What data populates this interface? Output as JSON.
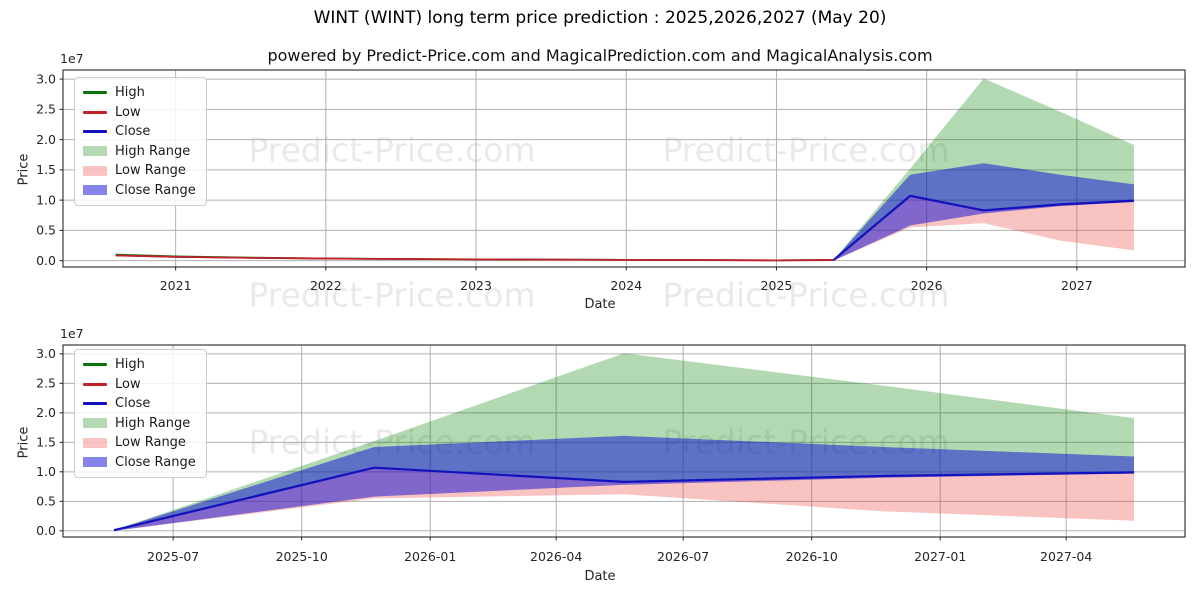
{
  "page": {
    "title": "WINT (WINT) long term price prediction : 2025,2026,2027 (May 20)",
    "subtitle": "powered by Predict-Price.com and MagicalPrediction.com and MagicalAnalysis.com",
    "watermark_text": "Predict-Price.com"
  },
  "colors": {
    "high_line": "#0a730a",
    "low_line": "#c32222",
    "close_line": "#1212bd",
    "high_range_fill": "rgba(0,128,0,0.3)",
    "low_range_fill": "rgba(235,55,50,0.3)",
    "close_range_fill": "rgba(10,10,215,0.5)",
    "grid": "#b0b0b0",
    "spine": "#262626",
    "tick_text": "#262626",
    "watermark": "rgba(0,0,0,0.085)"
  },
  "legend": [
    {
      "label": "High",
      "type": "line",
      "color": "#0a730a"
    },
    {
      "label": "Low",
      "type": "line",
      "color": "#c32222"
    },
    {
      "label": "Close",
      "type": "line",
      "color": "#1212bd"
    },
    {
      "label": "High Range",
      "type": "patch",
      "color": "rgba(0,128,0,0.3)"
    },
    {
      "label": "Low Range",
      "type": "patch",
      "color": "rgba(235,55,50,0.3)"
    },
    {
      "label": "Close Range",
      "type": "patch",
      "color": "rgba(10,10,215,0.5)"
    }
  ],
  "chart_data": [
    {
      "type": "area",
      "name": "long-term-history-and-forecast",
      "xlabel": "Date",
      "ylabel": "Price",
      "scale_note": "1e7",
      "y_unit": "1e7 (values below are in tens of millions)",
      "xlim": [
        2020.25,
        2027.72
      ],
      "ylim_1e7": [
        -0.105,
        3.15
      ],
      "grid": true,
      "legend_position": "upper-left",
      "x_ticks": [
        {
          "v": 2021,
          "label": "2021"
        },
        {
          "v": 2022,
          "label": "2022"
        },
        {
          "v": 2023,
          "label": "2023"
        },
        {
          "v": 2024,
          "label": "2024"
        },
        {
          "v": 2025,
          "label": "2025"
        },
        {
          "v": 2026,
          "label": "2026"
        },
        {
          "v": 2027,
          "label": "2027"
        }
      ],
      "y_ticks": [
        {
          "v": 0.0,
          "label": "0.0"
        },
        {
          "v": 0.5,
          "label": "0.5"
        },
        {
          "v": 1.0,
          "label": "1.0"
        },
        {
          "v": 1.5,
          "label": "1.5"
        },
        {
          "v": 2.0,
          "label": "2.0"
        },
        {
          "v": 2.5,
          "label": "2.5"
        },
        {
          "v": 3.0,
          "label": "3.0"
        }
      ],
      "series": [
        {
          "name": "High Range",
          "kind": "band",
          "color": "rgba(0,128,0,0.3)",
          "x": [
            2025.38,
            2025.89,
            2026.38,
            2026.89,
            2027.38
          ],
          "top": [
            0.01,
            1.52,
            3.01,
            2.46,
            1.91
          ],
          "bottom": [
            0.01,
            1.07,
            0.83,
            0.93,
            0.99
          ]
        },
        {
          "name": "Low Range",
          "kind": "band",
          "color": "rgba(235,55,50,0.3)",
          "x": [
            2025.38,
            2025.89,
            2026.38,
            2026.89,
            2027.38
          ],
          "top": [
            0.01,
            1.07,
            0.83,
            0.93,
            0.99
          ],
          "bottom": [
            0.0,
            0.55,
            0.62,
            0.33,
            0.17
          ]
        },
        {
          "name": "Close Range",
          "kind": "band",
          "color": "rgba(10,10,215,0.5)",
          "x": [
            2025.38,
            2025.89,
            2026.38,
            2026.89,
            2027.38
          ],
          "top": [
            0.01,
            1.42,
            1.61,
            1.42,
            1.26
          ],
          "bottom": [
            0.0,
            0.58,
            0.78,
            0.9,
            0.97
          ]
        },
        {
          "name": "High (historical)",
          "kind": "line",
          "color": "#0a730a",
          "width": 1.6,
          "x": [
            2020.6,
            2020.75,
            2021.0,
            2021.25,
            2021.5,
            2022.0,
            2022.5,
            2023.0,
            2023.5,
            2024.0,
            2024.5,
            2025.0,
            2025.38
          ],
          "y": [
            0.1,
            0.09,
            0.071,
            0.061,
            0.051,
            0.037,
            0.029,
            0.022,
            0.018,
            0.014,
            0.01,
            0.006,
            0.011
          ]
        },
        {
          "name": "Close (historical)",
          "kind": "line",
          "color": "#1212bd",
          "width": 1.6,
          "x": [
            2020.6,
            2020.75,
            2021.0,
            2021.25,
            2021.5,
            2022.0,
            2022.5,
            2023.0,
            2023.5,
            2024.0,
            2024.5,
            2025.0,
            2025.38
          ],
          "y": [
            0.085,
            0.078,
            0.062,
            0.054,
            0.046,
            0.034,
            0.027,
            0.021,
            0.017,
            0.013,
            0.009,
            0.005,
            0.01
          ]
        },
        {
          "name": "Low (historical)",
          "kind": "line",
          "color": "#c32222",
          "width": 1.8,
          "x": [
            2020.6,
            2020.75,
            2021.0,
            2021.25,
            2021.5,
            2022.0,
            2022.5,
            2023.0,
            2023.5,
            2024.0,
            2024.5,
            2025.0,
            2025.38
          ],
          "y": [
            0.085,
            0.078,
            0.062,
            0.054,
            0.046,
            0.034,
            0.027,
            0.021,
            0.017,
            0.013,
            0.009,
            0.005,
            0.01
          ]
        },
        {
          "name": "Close (forecast)",
          "kind": "line",
          "color": "#1212bd",
          "width": 2.2,
          "x": [
            2025.38,
            2025.89,
            2026.38,
            2026.89,
            2027.38
          ],
          "y": [
            0.01,
            1.07,
            0.83,
            0.93,
            0.99
          ]
        }
      ]
    },
    {
      "type": "area",
      "name": "forecast-detail-2025-2027",
      "xlabel": "Date",
      "ylabel": "Price",
      "scale_note": "1e7",
      "y_unit": "1e7 (values below are in tens of millions)",
      "xlim": [
        2025.28,
        2027.48
      ],
      "ylim_1e7": [
        -0.105,
        3.15
      ],
      "grid": true,
      "legend_position": "upper-left",
      "x_ticks": [
        {
          "v": 2025.496,
          "label": "2025-07"
        },
        {
          "v": 2025.748,
          "label": "2025-10"
        },
        {
          "v": 2026.0,
          "label": "2026-01"
        },
        {
          "v": 2026.247,
          "label": "2026-04"
        },
        {
          "v": 2026.496,
          "label": "2026-07"
        },
        {
          "v": 2026.748,
          "label": "2026-10"
        },
        {
          "v": 2027.0,
          "label": "2027-01"
        },
        {
          "v": 2027.247,
          "label": "2027-04"
        }
      ],
      "y_ticks": [
        {
          "v": 0.0,
          "label": "0.0"
        },
        {
          "v": 0.5,
          "label": "0.5"
        },
        {
          "v": 1.0,
          "label": "1.0"
        },
        {
          "v": 1.5,
          "label": "1.5"
        },
        {
          "v": 2.0,
          "label": "2.0"
        },
        {
          "v": 2.5,
          "label": "2.5"
        },
        {
          "v": 3.0,
          "label": "3.0"
        }
      ],
      "series": [
        {
          "name": "High Range",
          "kind": "band",
          "color": "rgba(0,128,0,0.3)",
          "x": [
            2025.38,
            2025.89,
            2026.38,
            2026.89,
            2027.38
          ],
          "top": [
            0.01,
            1.52,
            3.01,
            2.46,
            1.91
          ],
          "bottom": [
            0.01,
            1.07,
            0.83,
            0.93,
            0.99
          ]
        },
        {
          "name": "Low Range",
          "kind": "band",
          "color": "rgba(235,55,50,0.3)",
          "x": [
            2025.38,
            2025.89,
            2026.38,
            2026.89,
            2027.38
          ],
          "top": [
            0.01,
            1.07,
            0.83,
            0.93,
            0.99
          ],
          "bottom": [
            0.0,
            0.55,
            0.62,
            0.33,
            0.17
          ]
        },
        {
          "name": "Close Range",
          "kind": "band",
          "color": "rgba(10,10,215,0.5)",
          "x": [
            2025.38,
            2025.89,
            2026.38,
            2026.89,
            2027.38
          ],
          "top": [
            0.01,
            1.42,
            1.61,
            1.42,
            1.26
          ],
          "bottom": [
            0.0,
            0.58,
            0.78,
            0.9,
            0.97
          ]
        },
        {
          "name": "Close (forecast)",
          "kind": "line",
          "color": "#1212bd",
          "width": 2.2,
          "x": [
            2025.38,
            2025.89,
            2026.38,
            2026.89,
            2027.38
          ],
          "y": [
            0.01,
            1.07,
            0.83,
            0.93,
            0.99
          ]
        }
      ]
    }
  ]
}
